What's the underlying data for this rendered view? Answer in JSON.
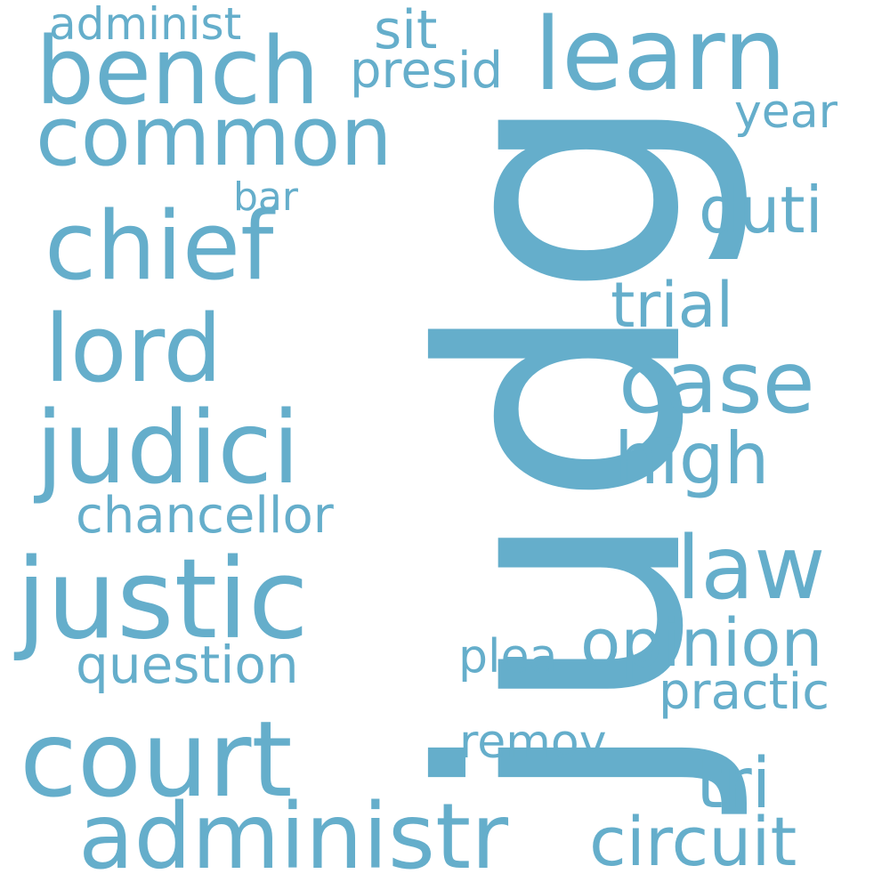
{
  "colors": {
    "word": "#65aecb",
    "background": "#ffffff"
  },
  "words": {
    "judg": "judg",
    "court": "court",
    "administr": "administr",
    "justic": "justic",
    "judici": "judici",
    "bench": "bench",
    "learn": "learn",
    "common": "common",
    "chief": "chief",
    "lord": "lord",
    "case": "case",
    "law": "law",
    "opinion": "opinion",
    "circuit": "circuit",
    "tri": "tri",
    "high": "high",
    "trial": "trial",
    "duti": "duti",
    "chancellor": "chancellor",
    "question": "question",
    "practic": "practic",
    "remov": "remov",
    "plea": "plea",
    "year": "year",
    "sit": "sit",
    "presid": "presid",
    "administ": "administ",
    "bar": "bar"
  }
}
